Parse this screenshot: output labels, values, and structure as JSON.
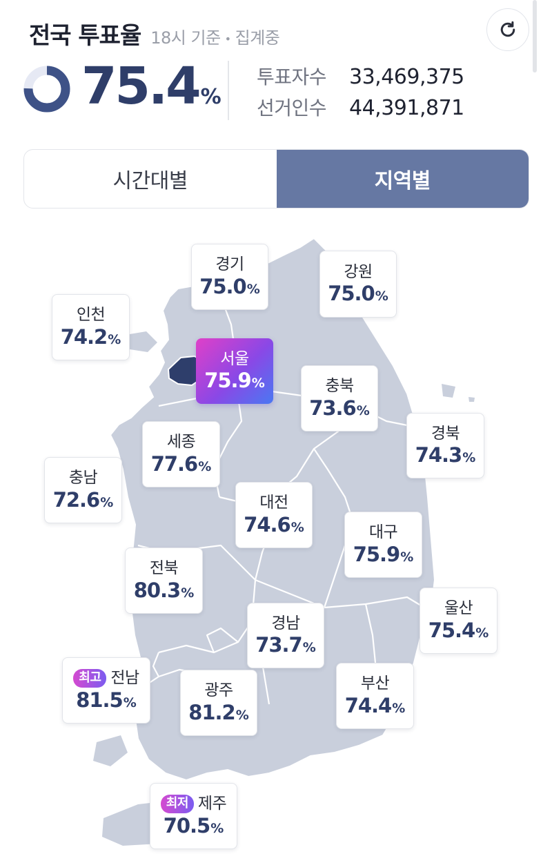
{
  "header": {
    "title": "전국 투표율",
    "time": "18시 기준",
    "separator": "•",
    "status": "집계중",
    "refresh_icon": "refresh-icon"
  },
  "summary": {
    "rate_value": "75.4",
    "rate_unit": "%",
    "donut_fraction": 0.754,
    "voters_label": "투표자수",
    "voters_value": "33,469,375",
    "electorate_label": "선거인수",
    "electorate_value": "44,391,871"
  },
  "tabs": [
    {
      "label": "시간대별",
      "active": false
    },
    {
      "label": "지역별",
      "active": true
    }
  ],
  "colors": {
    "accent": "#2f3e69",
    "tab_active": "#6678a3",
    "map_fill": "#c9cfdc",
    "seoul_fill": "#2e3e6b",
    "highlight_gradient": [
      "#e040c8",
      "#8a48e6",
      "#4a78f2"
    ]
  },
  "regions": [
    {
      "id": "gyeonggi",
      "name": "경기",
      "rate": "75.0",
      "unit": "%"
    },
    {
      "id": "gangwon",
      "name": "강원",
      "rate": "75.0",
      "unit": "%"
    },
    {
      "id": "incheon",
      "name": "인천",
      "rate": "74.2",
      "unit": "%"
    },
    {
      "id": "seoul",
      "name": "서울",
      "rate": "75.9",
      "unit": "%"
    },
    {
      "id": "chungbuk",
      "name": "충북",
      "rate": "73.6",
      "unit": "%"
    },
    {
      "id": "sejong",
      "name": "세종",
      "rate": "77.6",
      "unit": "%"
    },
    {
      "id": "gyeongbuk",
      "name": "경북",
      "rate": "74.3",
      "unit": "%"
    },
    {
      "id": "chungnam",
      "name": "충남",
      "rate": "72.6",
      "unit": "%"
    },
    {
      "id": "daejeon",
      "name": "대전",
      "rate": "74.6",
      "unit": "%"
    },
    {
      "id": "daegu",
      "name": "대구",
      "rate": "75.9",
      "unit": "%"
    },
    {
      "id": "jeonbuk",
      "name": "전북",
      "rate": "80.3",
      "unit": "%"
    },
    {
      "id": "ulsan",
      "name": "울산",
      "rate": "75.4",
      "unit": "%"
    },
    {
      "id": "gyeongnam",
      "name": "경남",
      "rate": "73.7",
      "unit": "%"
    },
    {
      "id": "jeonnam",
      "name": "전남",
      "rate": "81.5",
      "unit": "%",
      "badge": "최고"
    },
    {
      "id": "gwangju",
      "name": "광주",
      "rate": "81.2",
      "unit": "%"
    },
    {
      "id": "busan",
      "name": "부산",
      "rate": "74.4",
      "unit": "%"
    },
    {
      "id": "jeju",
      "name": "제주",
      "rate": "70.5",
      "unit": "%",
      "badge": "최저"
    }
  ]
}
